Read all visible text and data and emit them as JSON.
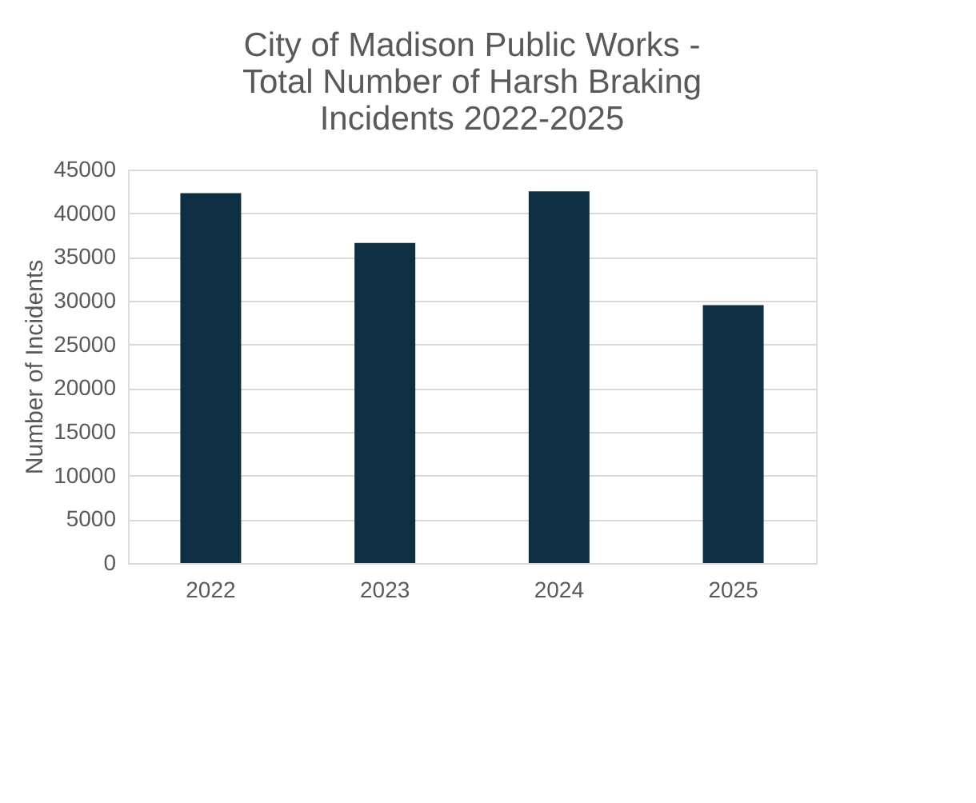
{
  "chart_data": {
    "type": "bar",
    "title": [
      "City of Madison Public Works -",
      "Total Number of Harsh Braking",
      "Incidents 2022-2025"
    ],
    "ylabel": "Number of Incidents",
    "categories": [
      "2022",
      "2023",
      "2024",
      "2025"
    ],
    "values": [
      42300,
      36600,
      42500,
      29500
    ],
    "color": "#0e2f42",
    "ylim": [
      0,
      45000
    ],
    "yticks": [
      0,
      5000,
      10000,
      15000,
      20000,
      25000,
      30000,
      35000,
      40000,
      45000
    ],
    "grid": "y"
  }
}
